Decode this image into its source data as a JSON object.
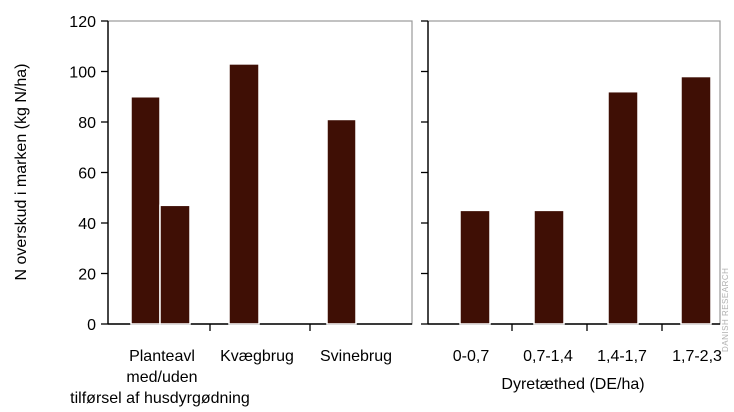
{
  "chart_data": {
    "type": "bar",
    "ylabel": "N overskud i marken (kg N/ha)",
    "ylim": [
      0,
      120
    ],
    "yticks": [
      0,
      20,
      40,
      60,
      80,
      100,
      120
    ],
    "grid": false,
    "bar_color": "#3f0f05",
    "bar_edge_color": "#ffffff",
    "panels": [
      {
        "categories": [
          "Planteavl\nmed/uden\ntilførsel af husdyrgødning",
          "Kvægbrug",
          "Svinebrug"
        ],
        "xlabel": "",
        "bars": [
          {
            "category": "Planteavl\nmed/uden\ntilførsel af husdyrgødning",
            "value": 90
          },
          {
            "category": "Planteavl\nmed/uden\ntilførsel af husdyrgødning",
            "value": 47
          },
          {
            "category": "Kvægbrug",
            "value": 103
          },
          {
            "category": "Svinebrug",
            "value": 81
          }
        ]
      },
      {
        "categories": [
          "0-0,7",
          "0,7-1,4",
          "1,4-1,7",
          "1,7-2,3"
        ],
        "xlabel": "Dyretæthed (DE/ha)",
        "bars": [
          {
            "category": "0-0,7",
            "value": 45
          },
          {
            "category": "0,7-1,4",
            "value": 45
          },
          {
            "category": "1,4-1,7",
            "value": 92
          },
          {
            "category": "1,7-2,3",
            "value": 98
          }
        ]
      }
    ]
  },
  "watermark": "DANISH RESEARCH"
}
